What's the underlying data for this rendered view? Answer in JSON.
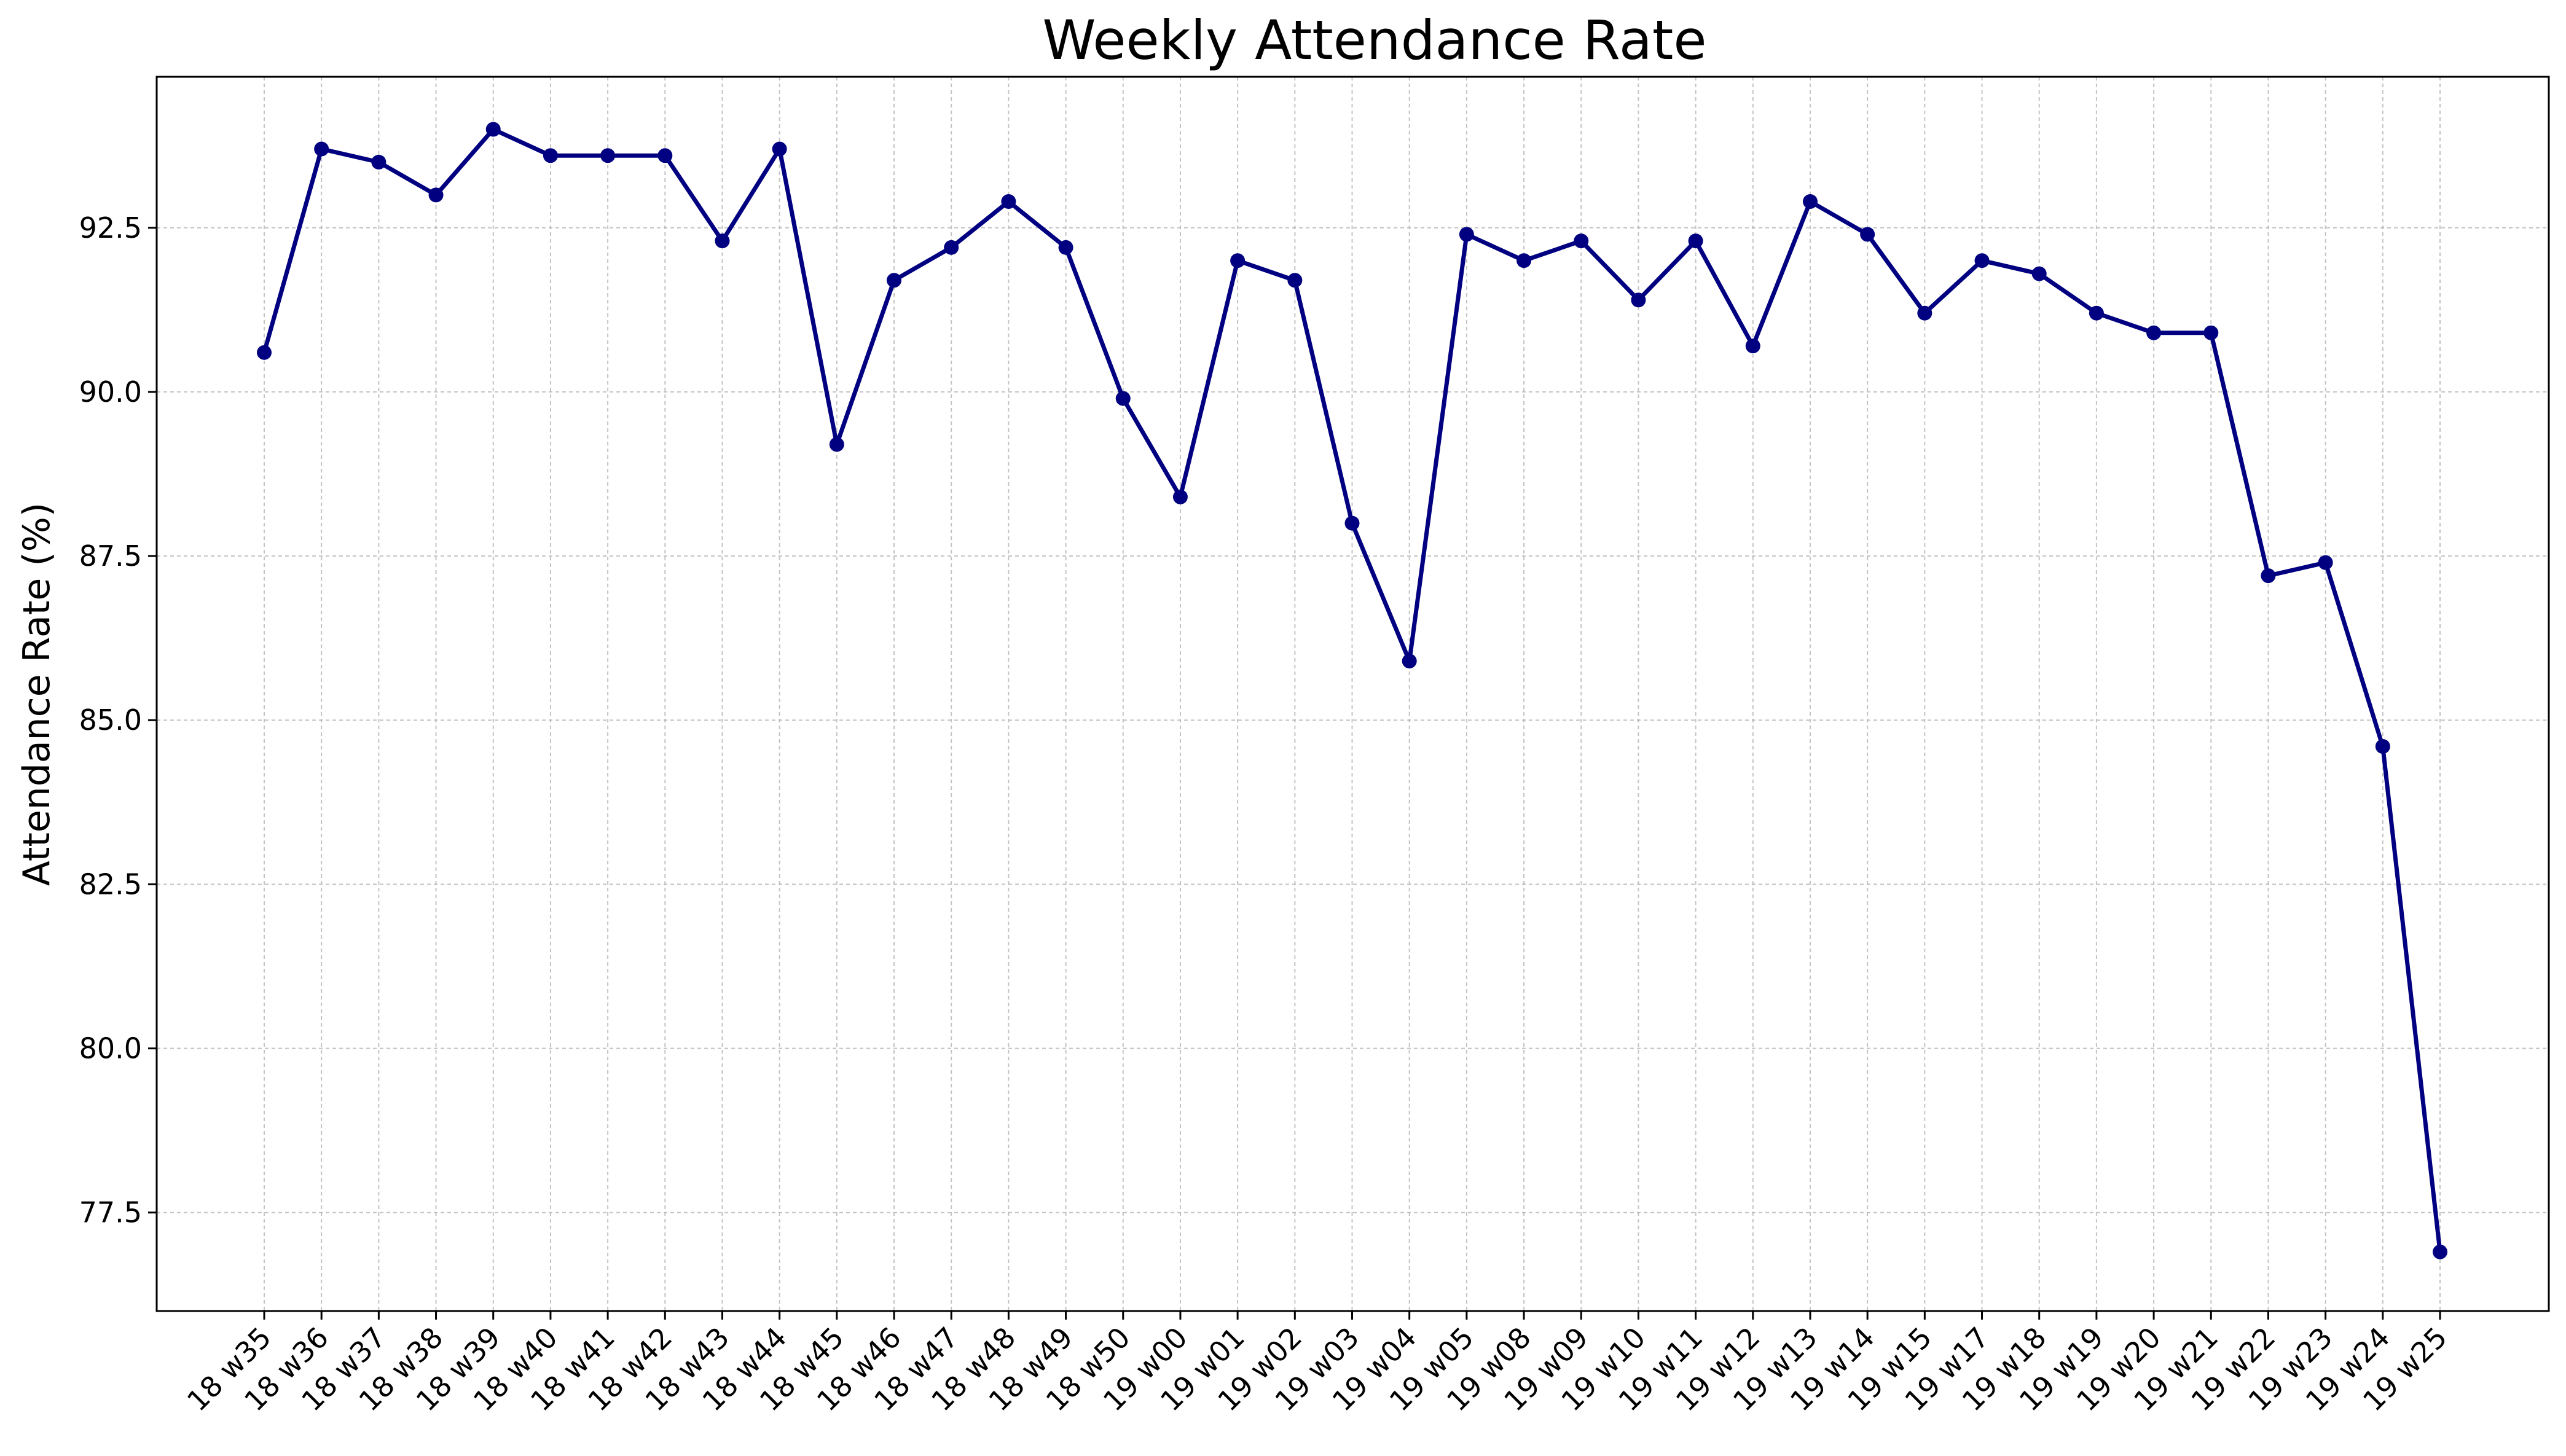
{
  "chart_data": {
    "type": "line",
    "title": "Weekly Attendance Rate",
    "xlabel": "",
    "ylabel": "Attendance Rate (%)",
    "ylim": [
      76.0,
      94.8
    ],
    "yticks": [
      77.5,
      80.0,
      82.5,
      85.0,
      87.5,
      90.0,
      92.5
    ],
    "ytick_labels": [
      "77.5",
      "80.0",
      "82.5",
      "85.0",
      "87.5",
      "90.0",
      "92.5"
    ],
    "grid": true,
    "line_color": "#000080",
    "categories": [
      "18 w35",
      "18 w36",
      "18 w37",
      "18 w38",
      "18 w39",
      "18 w40",
      "18 w41",
      "18 w42",
      "18 w43",
      "18 w44",
      "18 w45",
      "18 w46",
      "18 w47",
      "18 w48",
      "18 w49",
      "18 w50",
      "19 w00",
      "19 w01",
      "19 w02",
      "19 w03",
      "19 w04",
      "19 w05",
      "19 w08",
      "19 w09",
      "19 w10",
      "19 w11",
      "19 w12",
      "19 w13",
      "19 w14",
      "19 w15",
      "19 w17",
      "19 w18",
      "19 w19",
      "19 w20",
      "19 w21",
      "19 w22",
      "19 w23",
      "19 w24",
      "19 w25"
    ],
    "values": [
      90.6,
      93.7,
      93.5,
      93.0,
      94.0,
      93.6,
      93.6,
      93.6,
      92.3,
      93.7,
      89.2,
      91.7,
      92.2,
      92.9,
      92.2,
      89.9,
      88.4,
      92.0,
      91.7,
      88.0,
      85.9,
      92.4,
      92.0,
      92.3,
      91.4,
      92.3,
      90.7,
      92.9,
      92.4,
      91.2,
      92.0,
      91.8,
      91.2,
      90.9,
      90.9,
      87.2,
      87.4,
      84.6,
      76.9
    ]
  }
}
